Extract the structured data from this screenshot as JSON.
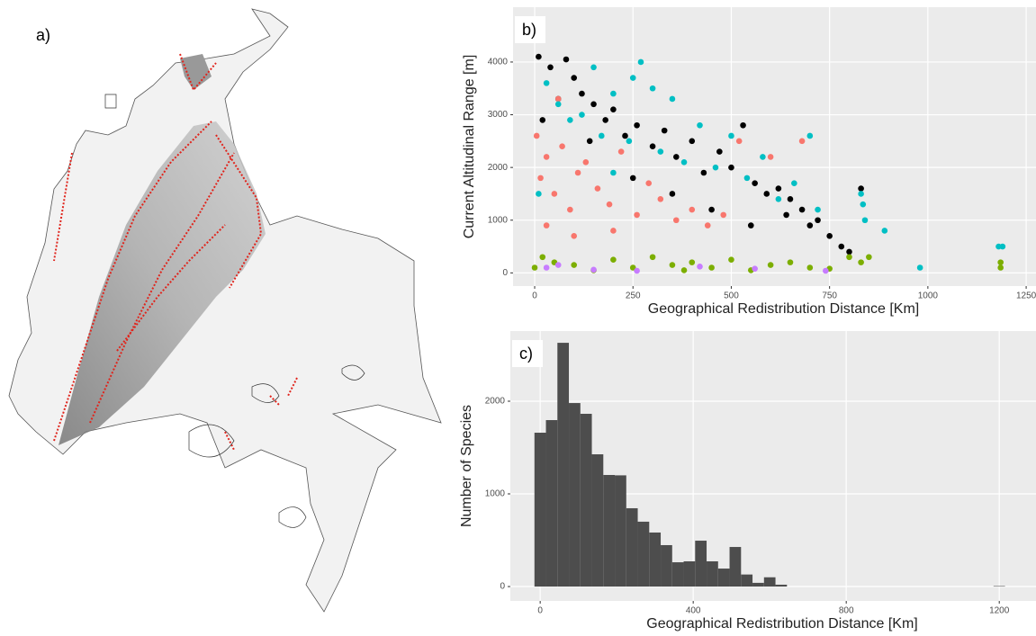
{
  "map_label": "a)",
  "chart_data": [
    {
      "type": "scatter",
      "panel_label": "b)",
      "x_label": "Geographical Redistribution Distance [Km]",
      "y_label": "Current Altitudinal Range [m]",
      "xlim": [
        -55,
        1275
      ],
      "ylim": [
        -250,
        5040
      ],
      "xticks": [
        0,
        250,
        500,
        750,
        1000,
        1250
      ],
      "yticks": [
        0,
        1000,
        2000,
        3000,
        4000
      ],
      "grid": true,
      "series": [
        {
          "color": "#000000",
          "x": [
            10,
            40,
            80,
            100,
            120,
            150,
            180,
            200,
            230,
            260,
            300,
            330,
            360,
            400,
            430,
            470,
            500,
            530,
            560,
            590,
            620,
            650,
            680,
            700,
            720,
            750,
            780,
            800,
            830,
            20,
            60,
            140,
            250,
            350,
            450,
            550,
            640
          ],
          "values": [
            4100,
            3900,
            4050,
            3700,
            3400,
            3200,
            2900,
            3100,
            2600,
            2800,
            2400,
            2700,
            2200,
            2500,
            1900,
            2300,
            2000,
            2800,
            1700,
            1500,
            1600,
            1400,
            1200,
            900,
            1000,
            700,
            500,
            400,
            1600,
            2900,
            3300,
            2500,
            1800,
            1500,
            1200,
            900,
            1100
          ]
        },
        {
          "color": "#f8766d",
          "x": [
            5,
            15,
            30,
            50,
            70,
            90,
            110,
            130,
            160,
            190,
            220,
            260,
            290,
            320,
            360,
            400,
            440,
            480,
            520,
            600,
            680,
            30,
            100,
            200,
            60
          ],
          "values": [
            2600,
            1800,
            2200,
            1500,
            2400,
            1200,
            1900,
            2100,
            1600,
            1300,
            2300,
            1100,
            1700,
            1400,
            1000,
            1200,
            900,
            1100,
            2500,
            2200,
            2500,
            900,
            700,
            800,
            3300
          ]
        },
        {
          "color": "#00bfc4",
          "x": [
            10,
            30,
            60,
            90,
            120,
            150,
            170,
            200,
            240,
            270,
            300,
            320,
            350,
            380,
            420,
            460,
            500,
            540,
            580,
            620,
            660,
            700,
            720,
            830,
            835,
            840,
            890,
            980,
            1180,
            1190,
            250,
            200
          ],
          "values": [
            1500,
            3600,
            3200,
            2900,
            3000,
            3900,
            2600,
            3400,
            2500,
            4000,
            3500,
            2300,
            3300,
            2100,
            2800,
            2000,
            2600,
            1800,
            2200,
            1400,
            1700,
            2600,
            1200,
            1500,
            1300,
            1000,
            800,
            100,
            500,
            500,
            3700,
            1900
          ]
        },
        {
          "color": "#7cae00",
          "x": [
            0,
            50,
            100,
            150,
            200,
            250,
            300,
            350,
            400,
            450,
            500,
            550,
            600,
            650,
            700,
            750,
            800,
            830,
            850,
            1185,
            1185,
            20,
            380
          ],
          "values": [
            100,
            200,
            150,
            50,
            250,
            100,
            300,
            150,
            200,
            100,
            250,
            50,
            150,
            200,
            100,
            80,
            300,
            200,
            300,
            200,
            100,
            300,
            50
          ]
        },
        {
          "color": "#c77cff",
          "x": [
            60,
            150,
            260,
            420,
            560,
            740,
            30
          ],
          "values": [
            150,
            60,
            40,
            120,
            80,
            40,
            100
          ]
        }
      ]
    },
    {
      "type": "histogram",
      "panel_label": "c)",
      "x_label": "Geographical Redistribution Distance [Km]",
      "y_label": "Number of Species",
      "color": "#4d4d4d",
      "xlim": [
        -78,
        1296
      ],
      "ylim": [
        -155,
        2757
      ],
      "xticks": [
        0,
        400,
        800,
        1200
      ],
      "yticks": [
        0,
        1000,
        2000
      ],
      "grid": true,
      "bins": [
        -15,
        15,
        45,
        75,
        105,
        135,
        165,
        195,
        225,
        255,
        285,
        315,
        345,
        375,
        405,
        435,
        465,
        495,
        525,
        555,
        585,
        615,
        645,
        675,
        705,
        735,
        765,
        795,
        825,
        855,
        885,
        915,
        945,
        975,
        1005,
        1035,
        1065,
        1095,
        1125,
        1155,
        1185,
        1215
      ],
      "values": [
        1660,
        1796,
        2630,
        1980,
        1864,
        1427,
        1204,
        1200,
        845,
        700,
        583,
        447,
        262,
        272,
        495,
        272,
        194,
        427,
        130,
        40,
        100,
        20,
        0,
        0,
        0,
        0,
        0,
        0,
        0,
        0,
        0,
        0,
        0,
        0,
        0,
        0,
        0,
        0,
        0,
        0,
        5
      ]
    }
  ]
}
